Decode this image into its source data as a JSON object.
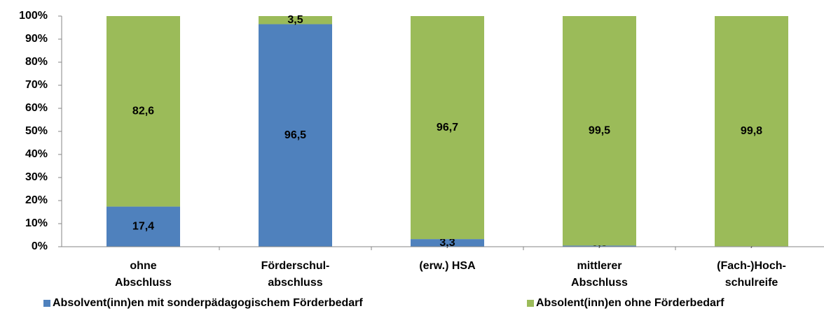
{
  "chart_data": {
    "type": "stacked_bar",
    "categories": [
      [
        "ohne",
        "Abschluss"
      ],
      [
        "Förderschul-",
        "abschluss"
      ],
      [
        "(erw.) HSA"
      ],
      [
        "mittlerer",
        "Abschluss"
      ],
      [
        "(Fach-)Hoch-",
        "schulreife"
      ]
    ],
    "series": [
      {
        "name": "Absolvent(inn)en mit sonderpädagogischem Förderbedarf",
        "color": "#4f81bd",
        "values": [
          17.4,
          96.5,
          3.3,
          0.5,
          0.2
        ],
        "value_labels": [
          "17,4",
          "96,5",
          "3,3",
          "0,5",
          "0,2"
        ]
      },
      {
        "name": "Absolent(inn)en ohne Förderbedarf",
        "color": "#9bbb59",
        "values": [
          82.6,
          3.5,
          96.7,
          99.5,
          99.8
        ],
        "value_labels": [
          "82,6",
          "3,5",
          "96,7",
          "99,5",
          "99,8"
        ]
      }
    ],
    "ylim": [
      0,
      100
    ],
    "yticks": [
      {
        "value": 0,
        "label": "0%"
      },
      {
        "value": 10,
        "label": "10%"
      },
      {
        "value": 20,
        "label": "20%"
      },
      {
        "value": 30,
        "label": "30%"
      },
      {
        "value": 40,
        "label": "40%"
      },
      {
        "value": 50,
        "label": "50%"
      },
      {
        "value": 60,
        "label": "60%"
      },
      {
        "value": 70,
        "label": "70%"
      },
      {
        "value": 80,
        "label": "80%"
      },
      {
        "value": 90,
        "label": "90%"
      },
      {
        "value": 100,
        "label": "100%"
      }
    ],
    "legend": "bottom"
  }
}
